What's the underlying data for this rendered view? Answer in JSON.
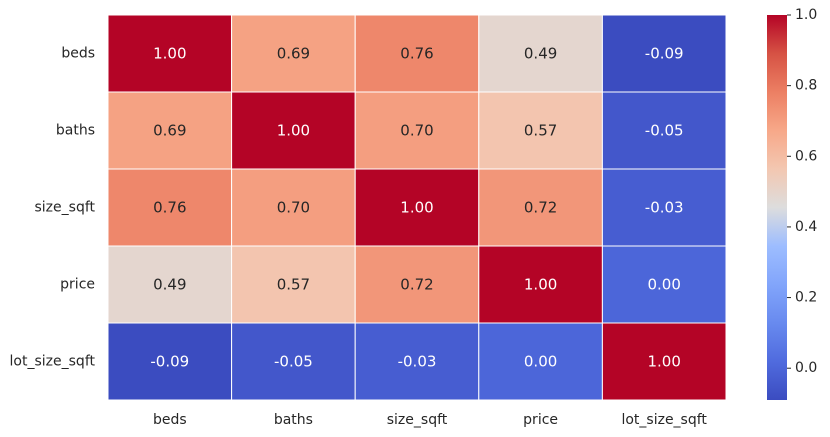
{
  "chart_data": {
    "type": "heatmap",
    "title": "",
    "xlabel": "",
    "ylabel": "",
    "x_categories": [
      "beds",
      "baths",
      "size_sqft",
      "price",
      "lot_size_sqft"
    ],
    "y_categories": [
      "beds",
      "baths",
      "size_sqft",
      "price",
      "lot_size_sqft"
    ],
    "values": [
      [
        1.0,
        0.69,
        0.76,
        0.49,
        -0.09
      ],
      [
        0.69,
        1.0,
        0.7,
        0.57,
        -0.05
      ],
      [
        0.76,
        0.7,
        1.0,
        0.72,
        -0.03
      ],
      [
        0.49,
        0.57,
        0.72,
        1.0,
        0.0
      ],
      [
        -0.09,
        -0.05,
        -0.03,
        0.0,
        1.0
      ]
    ],
    "annotations_format": "0.00",
    "colormap": "coolwarm",
    "colorbar": {
      "vmin": -0.09,
      "vmax": 1.0,
      "ticks": [
        0.0,
        0.2,
        0.4,
        0.6,
        0.8,
        1.0
      ],
      "tick_labels": [
        "0.0",
        "0.2",
        "0.4",
        "0.6",
        "0.8",
        "1.0"
      ]
    },
    "grid": false,
    "cell_border_color": "#ffffff",
    "legend": "colorbar-right"
  }
}
